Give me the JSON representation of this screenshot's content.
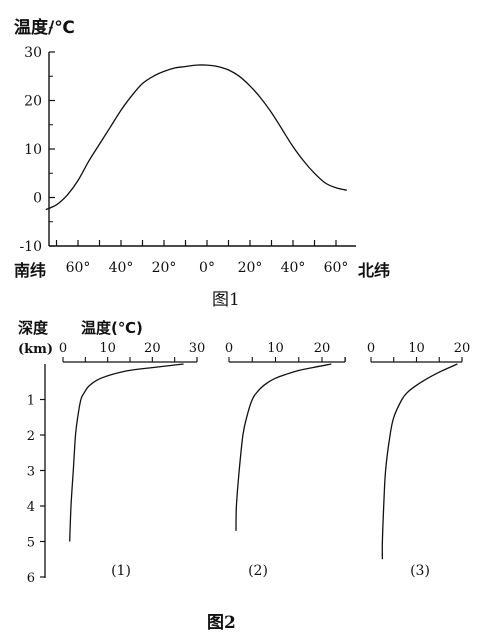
{
  "chart_data": [
    {
      "type": "line",
      "title": "图1",
      "ylabel": "温度/℃",
      "xlabel_left": "南纬",
      "xlabel_right": "北纬",
      "ylim": [
        -10,
        30
      ],
      "yticks": [
        "30",
        "20",
        "10",
        "0",
        "-10"
      ],
      "xticks": [
        {
          "v": -60,
          "label": "60°"
        },
        {
          "v": -40,
          "label": "40°"
        },
        {
          "v": -20,
          "label": "20°"
        },
        {
          "v": 0,
          "label": "0°"
        },
        {
          "v": 20,
          "label": "20°"
        },
        {
          "v": 40,
          "label": "40°"
        },
        {
          "v": 60,
          "label": "60°"
        }
      ],
      "x": [
        -75,
        -70,
        -65,
        -60,
        -55,
        -50,
        -45,
        -40,
        -35,
        -30,
        -25,
        -20,
        -15,
        -10,
        -5,
        0,
        5,
        10,
        15,
        20,
        25,
        30,
        35,
        40,
        45,
        50,
        55,
        60,
        65
      ],
      "y": [
        -2.5,
        -1.5,
        0.5,
        3.5,
        7.5,
        11,
        14.5,
        18,
        21,
        23.5,
        25,
        26,
        26.7,
        27,
        27.3,
        27.3,
        27,
        26.3,
        25,
        23,
        20.5,
        17.5,
        14,
        10.5,
        7.5,
        5,
        3,
        2,
        1.5
      ]
    },
    {
      "type": "line",
      "title": "图2",
      "depth_label": "深度",
      "depth_unit": "(km)",
      "temp_label": "温度(℃)",
      "depth_ticks": [
        "1",
        "2",
        "3",
        "4",
        "5",
        "6"
      ],
      "panels": [
        {
          "name": "(1)",
          "temp_ticks": [
            "0",
            "10",
            "20",
            "30"
          ],
          "temp_max": 30,
          "depth": [
            0,
            0.1,
            0.2,
            0.4,
            0.6,
            0.8,
            1.0,
            1.5,
            2.0,
            3.0,
            4.0,
            5.0
          ],
          "temp": [
            27,
            20,
            14,
            8.5,
            6,
            4.8,
            4,
            3.3,
            2.8,
            2.3,
            1.8,
            1.5
          ]
        },
        {
          "name": "(2)",
          "temp_ticks": [
            "0",
            "10",
            "20"
          ],
          "temp_max": 25,
          "depth": [
            0,
            0.1,
            0.2,
            0.4,
            0.6,
            0.8,
            1.0,
            1.5,
            2.0,
            3.0,
            4.0,
            4.7
          ],
          "temp": [
            22,
            18,
            14.5,
            10,
            7.5,
            6,
            5,
            3.8,
            3,
            2.2,
            1.6,
            1.5
          ]
        },
        {
          "name": "(3)",
          "temp_ticks": [
            "0",
            "10",
            "20"
          ],
          "temp_max": 20,
          "depth": [
            0,
            0.2,
            0.4,
            0.6,
            0.8,
            1.0,
            1.5,
            2.0,
            3.0,
            4.0,
            5.0,
            5.5
          ],
          "temp": [
            19,
            15.5,
            12.5,
            10,
            8,
            6.8,
            5,
            4.2,
            3.2,
            2.8,
            2.5,
            2.5
          ]
        }
      ]
    }
  ]
}
